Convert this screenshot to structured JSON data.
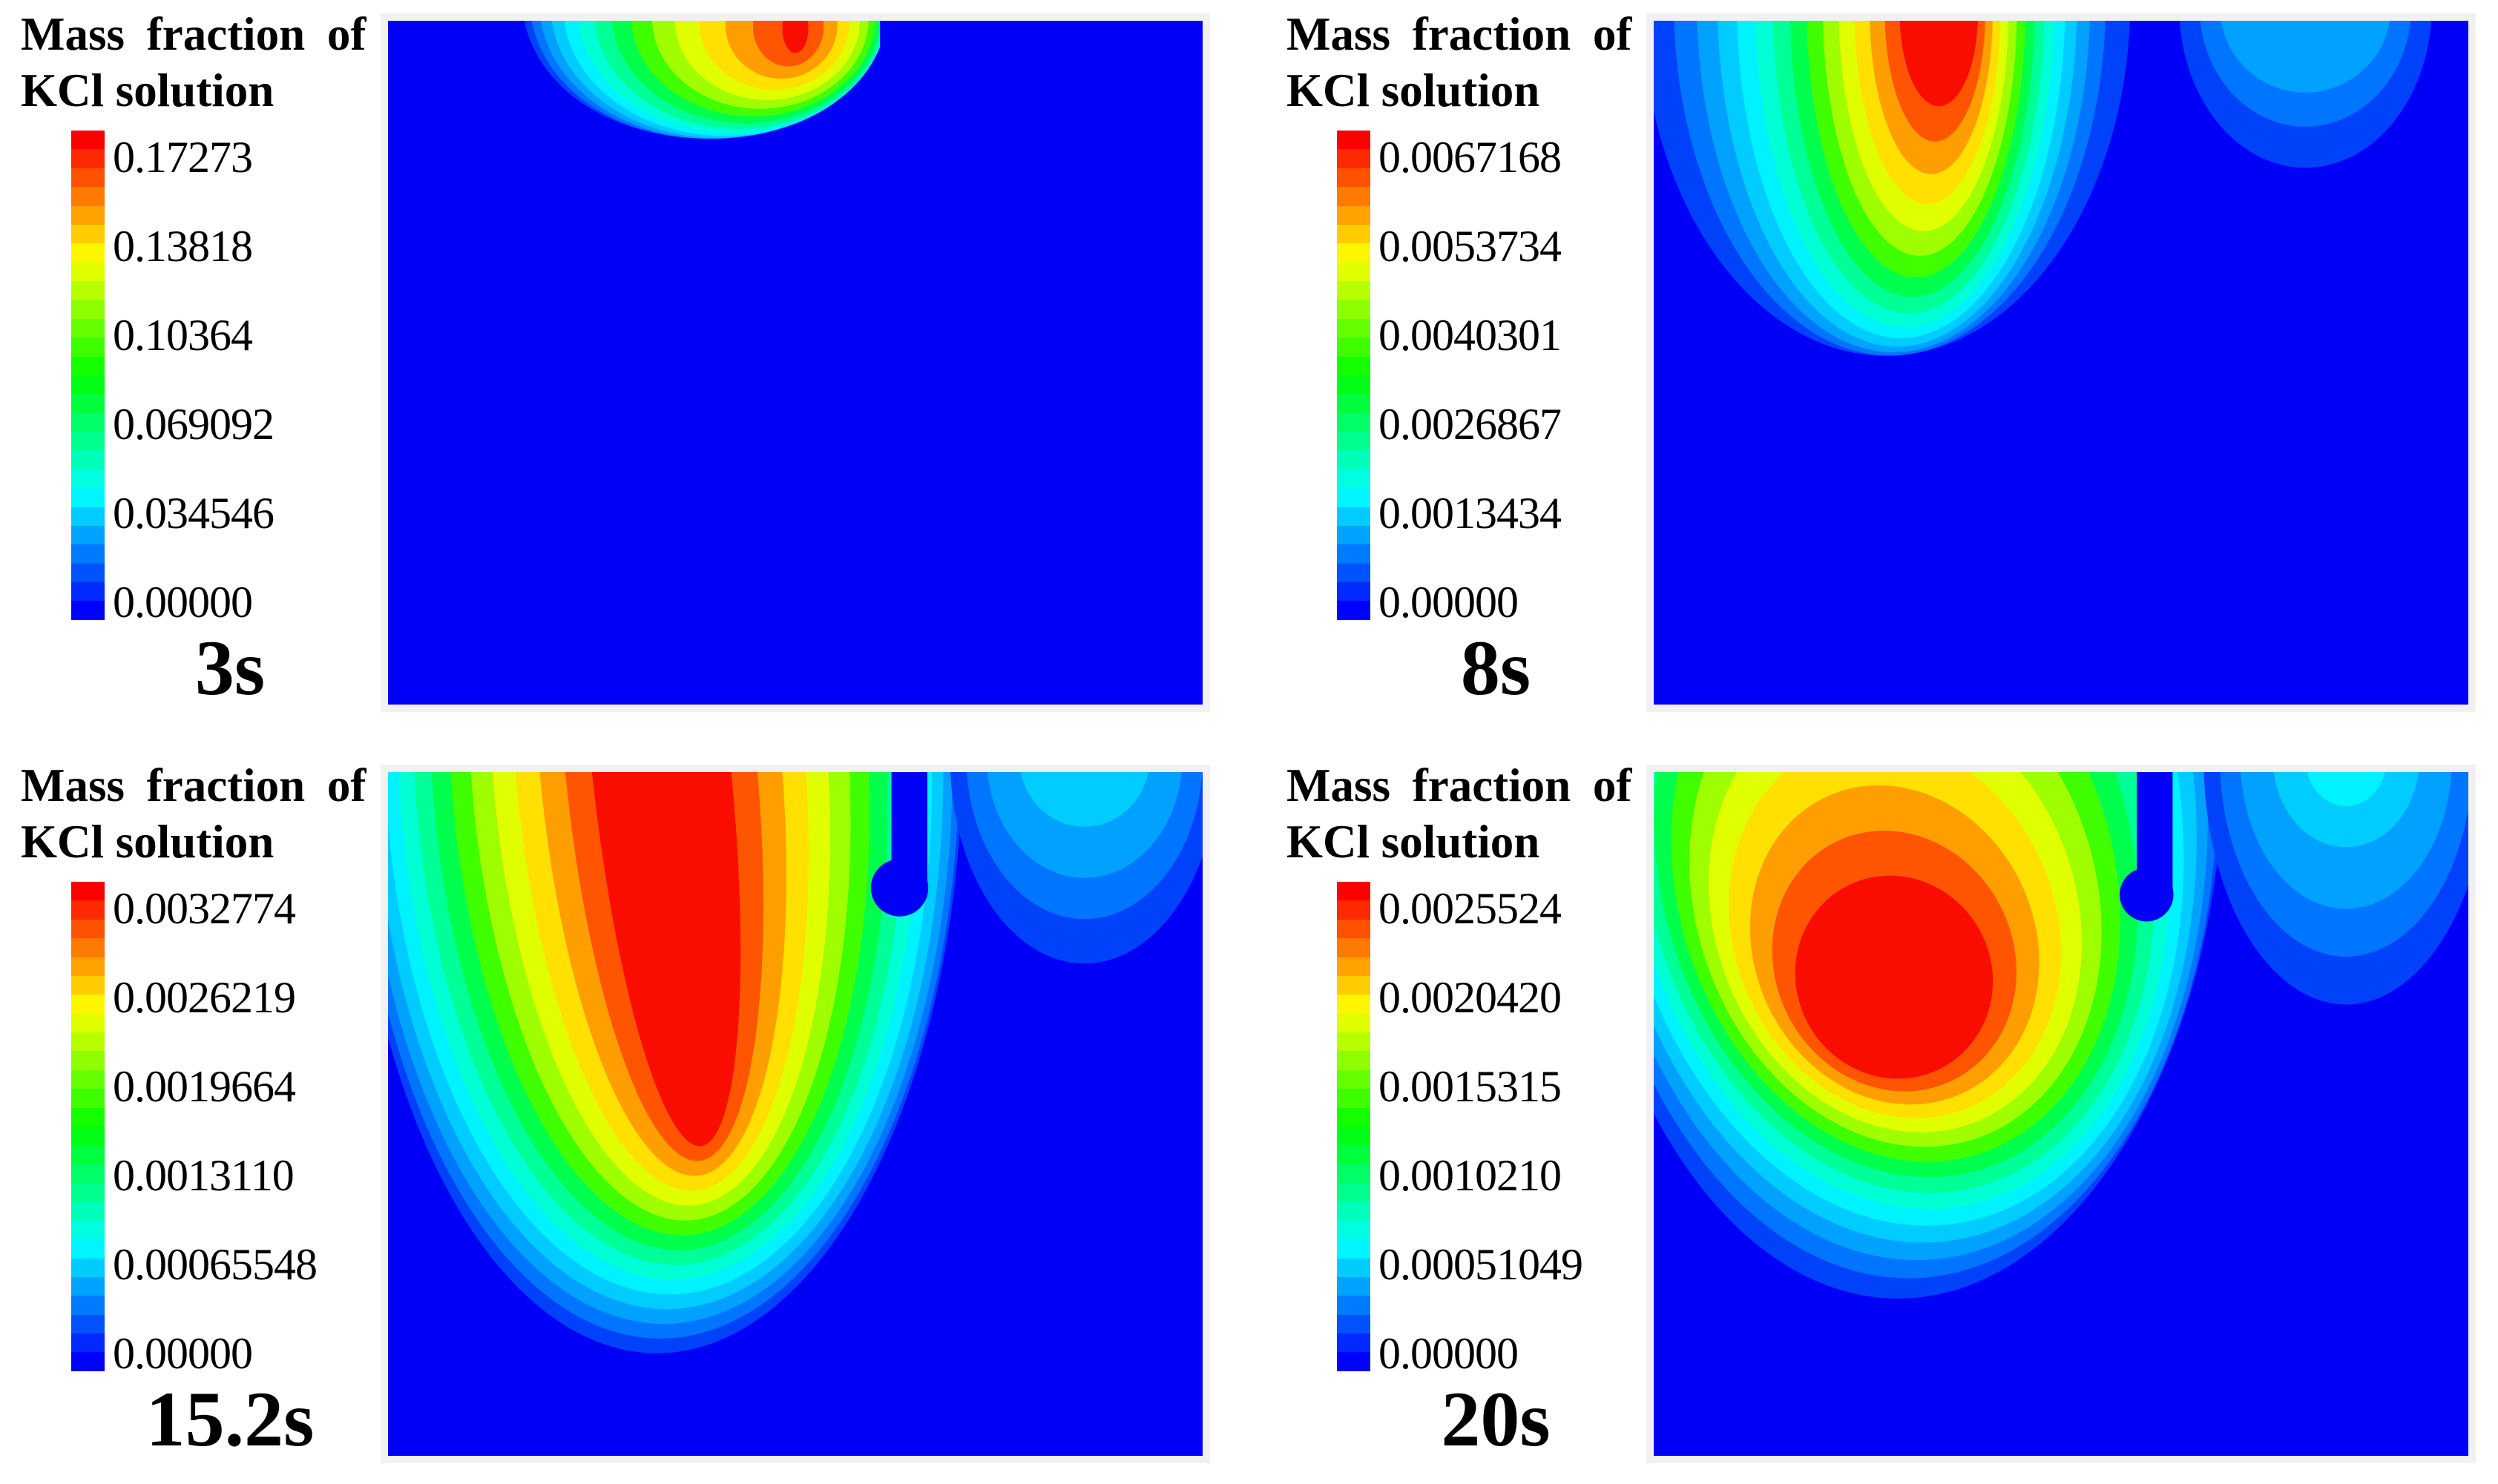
{
  "chart_data": {
    "type": "heatmap",
    "subtype": "CFD contour plots of concentration field at four time steps",
    "title": "Mass fraction of KCl solution",
    "colormap": "rainbow, red = max, blue = 0",
    "colorbar_steps": 26,
    "background_color": "#0000F6",
    "band_colors": [
      "#0042FA",
      "#0075FF",
      "#00A1FF",
      "#00CCFF",
      "#00F2FF",
      "#00FFD4",
      "#00FF96",
      "#00FF4D",
      "#40FF00",
      "#9FFF00",
      "#E0FF00",
      "#FFE000",
      "#FF9E00",
      "#FF5500",
      "#F90D00"
    ],
    "legend_position": "left of each panel",
    "grid": false,
    "panels": [
      {
        "time": "3s",
        "title_line1": "Mass fraction of",
        "title_line2": "KCl solution",
        "colorbar_labels": [
          "0.17273",
          "0.13818",
          "0.10364",
          "0.069092",
          "0.034546",
          "0.00000"
        ],
        "colorbar_values": [
          0.17273,
          0.13818,
          0.10364,
          0.069092,
          0.034546,
          0.0
        ],
        "max_value": 0.17273,
        "min_value": 0.0,
        "field": {
          "description": "small plume at top center, tiny red core at surface",
          "plume": {
            "cx_out": 0.38,
            "cx_in": 0.5,
            "cy_out": -0.03,
            "cy_in": 0.012,
            "rx_out": 0.215,
            "rx_in": 0.016,
            "ry_out": 0.2,
            "ry_in": 0.035,
            "p_rx": 2.0,
            "p_ry": 2.0,
            "rot_out": 0,
            "rot_in": 0
          },
          "lobe": null,
          "tube": {
            "x": 0.62,
            "hw": 0.016,
            "depth": 0.14,
            "hook": 0.004,
            "r": 1.1
          }
        }
      },
      {
        "time": "8s",
        "title_line1": "Mass fraction of",
        "title_line2": "KCl solution",
        "colorbar_labels": [
          "0.0067168",
          "0.0053734",
          "0.0040301",
          "0.0026867",
          "0.0013434",
          "0.00000"
        ],
        "colorbar_values": [
          0.0067168,
          0.0053734,
          0.0040301,
          0.0026867,
          0.0013434,
          0.0
        ],
        "max_value": 0.0067168,
        "min_value": 0.0,
        "field": {
          "description": "large rainbow plume left of probe, red streak at surface; light-blue lobe right of probe",
          "plume": {
            "cx_out": 0.285,
            "cx_in": 0.35,
            "cy_out": -0.03,
            "cy_in": -0.01,
            "rx_out": 0.3,
            "rx_in": 0.048,
            "ry_out": 0.52,
            "ry_in": 0.135,
            "p_rx": 0.75,
            "p_ry": 2.0,
            "rot_out": 0,
            "rot_in": 0
          },
          "lobe": {
            "cx": 0.8,
            "cy": -0.02,
            "bands": [
              {
                "color": "#0042FA",
                "rx": 0.155,
                "ry": 0.235
              },
              {
                "color": "#0075FF",
                "rx": 0.13,
                "ry": 0.175
              },
              {
                "color": "#00A1FF",
                "rx": 0.105,
                "ry": 0.125
              }
            ]
          },
          "tube": {
            "x": 0.625,
            "hw": 0.02,
            "depth": 0.2,
            "hook": 0.012,
            "r": 1.6
          }
        }
      },
      {
        "time": "15.2s",
        "title_line1": "Mass fraction of",
        "title_line2": "KCl solution",
        "colorbar_labels": [
          "0.0032774",
          "0.0026219",
          "0.0019664",
          "0.0013110",
          "0.00065548",
          "0.00000"
        ],
        "colorbar_values": [
          0.0032774,
          0.0026219,
          0.0019664,
          0.001311,
          0.00065548,
          0.0
        ],
        "max_value": 0.0032774,
        "min_value": 0.0,
        "field": {
          "description": "deep plume, elongated red core from surface to mid-depth; brighter blue lobe right of probe",
          "plume": {
            "cx_out": 0.33,
            "cx_in": 0.335,
            "cy_out": -0.03,
            "cy_in": -0.01,
            "rx_out": 0.375,
            "rx_in": 0.085,
            "ry_out": 0.88,
            "ry_in": 0.56,
            "p_rx": 1.6,
            "p_ry": 1.0,
            "rot_out": 0,
            "rot_in": -6
          },
          "lobe": {
            "cx": 0.855,
            "cy": -0.02,
            "bands": [
              {
                "color": "#0042FA",
                "rx": 0.165,
                "ry": 0.3
              },
              {
                "color": "#0075FF",
                "rx": 0.145,
                "ry": 0.235
              },
              {
                "color": "#00A1FF",
                "rx": 0.12,
                "ry": 0.175
              },
              {
                "color": "#00CCFF",
                "rx": 0.08,
                "ry": 0.1
              }
            ]
          },
          "tube": {
            "x": 0.64,
            "hw": 0.022,
            "depth": 0.185,
            "hook": 0.012,
            "r": 1.6
          }
        }
      },
      {
        "time": "20s",
        "title_line1": "Mass fraction of",
        "title_line2": "KCl solution",
        "colorbar_labels": [
          "0.0025524",
          "0.0020420",
          "0.0015315",
          "0.0010210",
          "0.00051049",
          "0.00000"
        ],
        "colorbar_values": [
          0.0025524,
          0.002042,
          0.0015315,
          0.001021,
          0.00051049,
          0.0
        ],
        "max_value": 0.0025524,
        "min_value": 0.0,
        "field": {
          "description": "wide plume with detached tilted red core below surface; large cyan-blue lobe right of probe",
          "plume": {
            "cx_out": 0.3,
            "cx_in": 0.295,
            "cy_out": -0.03,
            "cy_in": 0.3,
            "rx_out": 0.4,
            "rx_in": 0.12,
            "ry_out": 0.8,
            "ry_in": 0.15,
            "p_rx": 1.35,
            "p_ry": 0.95,
            "rot_out": 0,
            "rot_in": -28
          },
          "lobe": {
            "cx": 0.85,
            "cy": -0.02,
            "bands": [
              {
                "color": "#0042FA",
                "rx": 0.175,
                "ry": 0.36
              },
              {
                "color": "#0075FF",
                "rx": 0.155,
                "ry": 0.29
              },
              {
                "color": "#00A1FF",
                "rx": 0.13,
                "ry": 0.22
              },
              {
                "color": "#00CCFF",
                "rx": 0.09,
                "ry": 0.13
              },
              {
                "color": "#00F2FF",
                "rx": 0.05,
                "ry": 0.07
              }
            ]
          },
          "tube": {
            "x": 0.615,
            "hw": 0.022,
            "depth": 0.195,
            "hook": 0.01,
            "r": 1.5
          }
        }
      }
    ]
  }
}
